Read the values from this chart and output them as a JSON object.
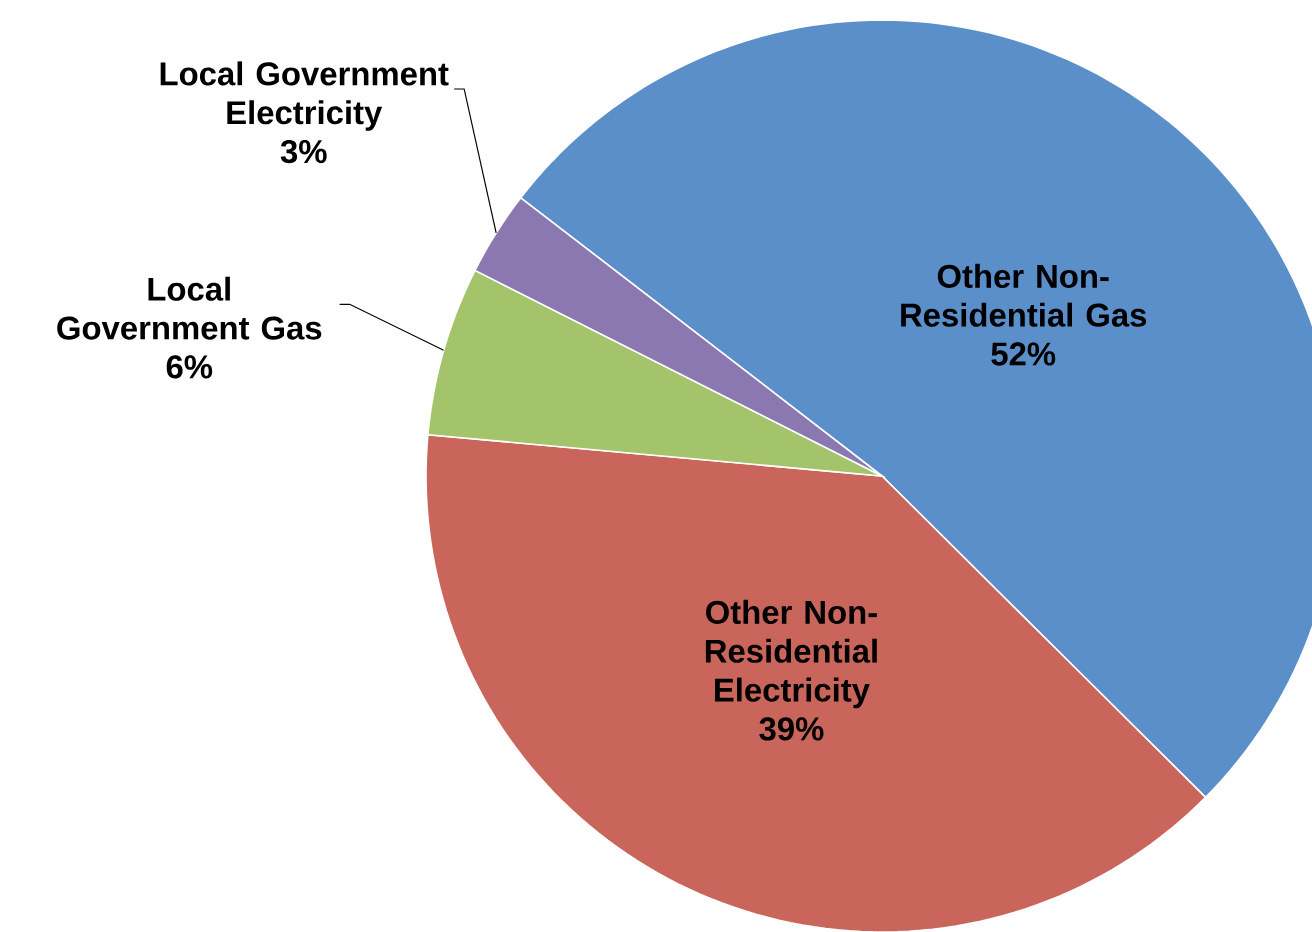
{
  "chart_data": {
    "type": "pie",
    "categories": [
      "Other Non-Residential Gas",
      "Other Non-Residential Electricity",
      "Local Government Gas",
      "Local Government Electricity"
    ],
    "values": [
      52,
      39,
      6,
      3
    ],
    "value_labels": [
      "52%",
      "39%",
      "6%",
      "3%"
    ],
    "colors": [
      "#5b8fc9",
      "#c9655a",
      "#a3c46a",
      "#8c78b0"
    ]
  }
}
